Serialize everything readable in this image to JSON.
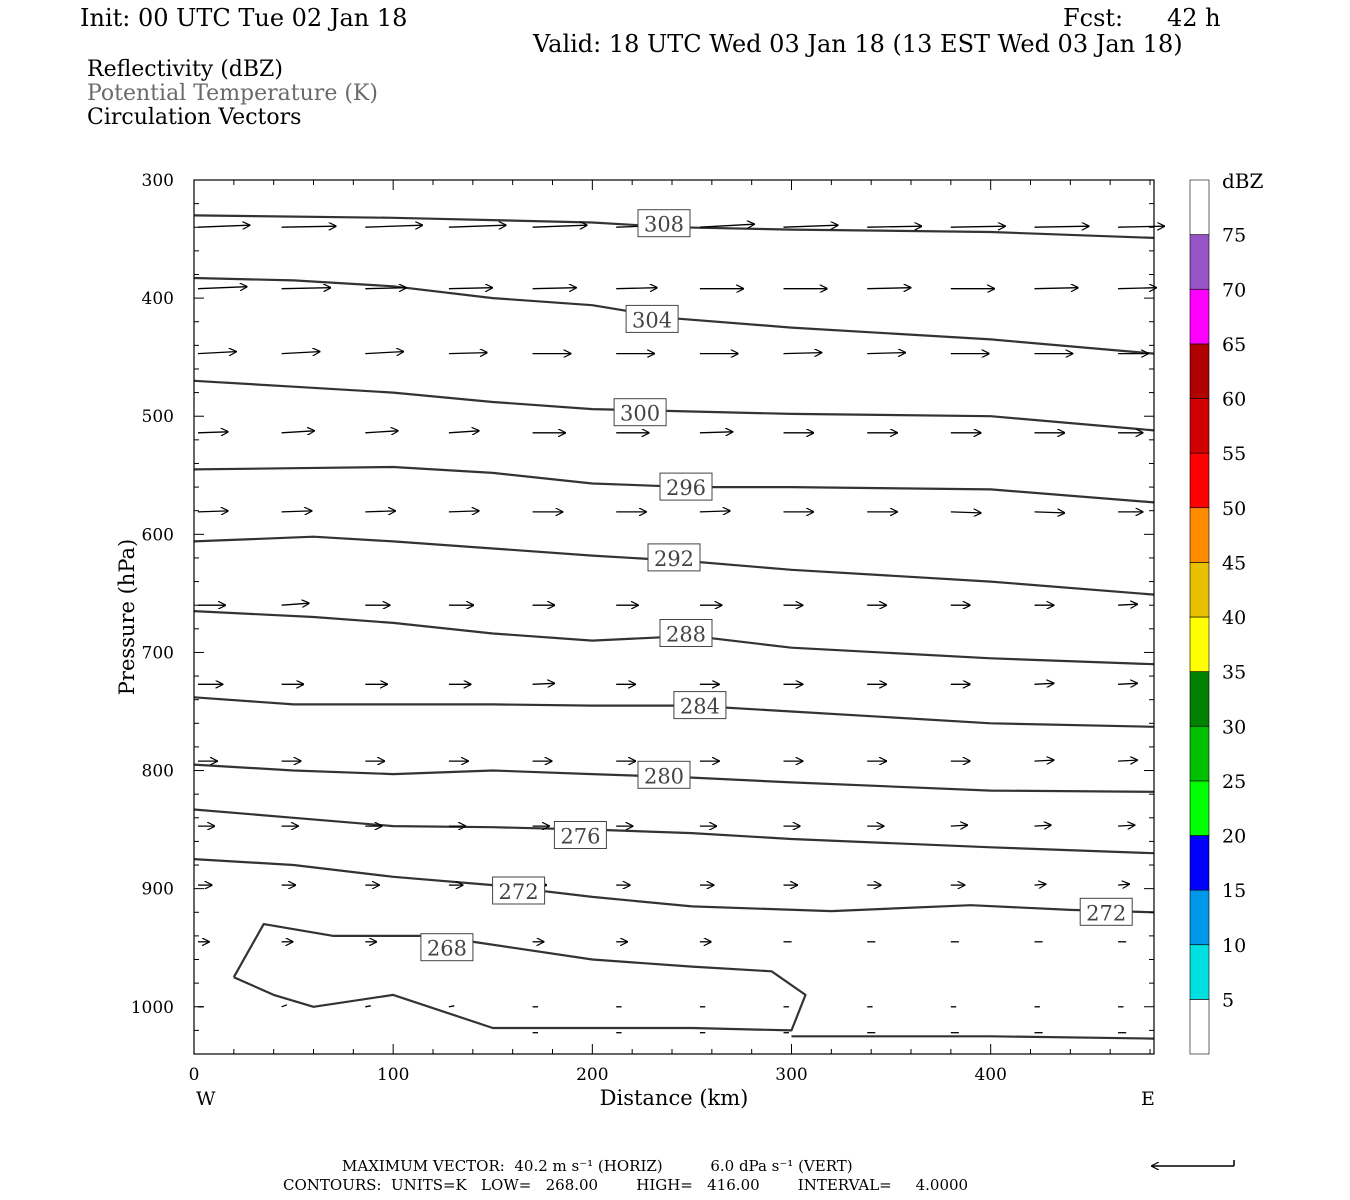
{
  "header": {
    "init": "Init: 00 UTC Tue 02 Jan 18",
    "fcst_label": "Fcst:",
    "fcst_value": "42 h",
    "valid": "Valid: 18 UTC Wed 03 Jan 18 (13 EST Wed 03 Jan 18)"
  },
  "fields": {
    "line1": "Reflectivity (dBZ)",
    "line2": "Potential Temperature (K)",
    "line3": "Circulation Vectors"
  },
  "footer": {
    "max_vector": "MAXIMUM VECTOR:  40.2 m s⁻¹ (HORIZ)          6.0 dPa s⁻¹ (VERT)",
    "contours": "CONTOURS:  UNITS=K   LOW=   268.00        HIGH=   416.00        INTERVAL=     4.0000"
  },
  "colors": {
    "contour": "#333333",
    "vector": "#000000"
  },
  "chart_data": {
    "type": "line",
    "xlabel": "Distance (km)",
    "ylabel": "Pressure (hPa)",
    "xlim": [
      0,
      482
    ],
    "ylim": [
      1040,
      300
    ],
    "x_ticks": [
      0,
      100,
      200,
      300,
      400
    ],
    "y_ticks": [
      300,
      400,
      500,
      600,
      700,
      800,
      900,
      1000
    ],
    "x_end_labels": {
      "left": "W",
      "right": "E"
    },
    "series": [
      {
        "name": "308",
        "x": [
          0,
          100,
          200,
          240,
          300,
          400,
          482
        ],
        "y": [
          330,
          332,
          336,
          340,
          342,
          344,
          349
        ]
      },
      {
        "name": "304",
        "x": [
          0,
          50,
          100,
          150,
          200,
          240,
          300,
          400,
          482
        ],
        "y": [
          383,
          385,
          390,
          400,
          406,
          417,
          425,
          435,
          447
        ]
      },
      {
        "name": "300",
        "x": [
          0,
          50,
          100,
          150,
          200,
          250,
          300,
          400,
          482
        ],
        "y": [
          470,
          475,
          480,
          488,
          494,
          496,
          498,
          500,
          512
        ]
      },
      {
        "name": "296",
        "x": [
          0,
          50,
          100,
          150,
          200,
          250,
          300,
          400,
          482
        ],
        "y": [
          545,
          544,
          543,
          548,
          557,
          560,
          560,
          562,
          573
        ]
      },
      {
        "name": "292",
        "x": [
          0,
          60,
          100,
          150,
          200,
          250,
          300,
          400,
          482
        ],
        "y": [
          606,
          602,
          606,
          612,
          618,
          623,
          630,
          640,
          651
        ]
      },
      {
        "name": "288",
        "x": [
          0,
          60,
          100,
          150,
          200,
          250,
          300,
          400,
          482
        ],
        "y": [
          665,
          670,
          675,
          684,
          690,
          686,
          696,
          705,
          710
        ]
      },
      {
        "name": "284",
        "x": [
          0,
          50,
          100,
          150,
          200,
          250,
          300,
          400,
          482
        ],
        "y": [
          738,
          744,
          744,
          744,
          745,
          745,
          750,
          760,
          763
        ]
      },
      {
        "name": "280",
        "x": [
          0,
          50,
          100,
          150,
          200,
          250,
          300,
          400,
          482
        ],
        "y": [
          795,
          800,
          803,
          800,
          803,
          806,
          810,
          817,
          818
        ]
      },
      {
        "name": "276",
        "x": [
          0,
          50,
          100,
          150,
          200,
          250,
          300,
          400,
          482
        ],
        "y": [
          833,
          840,
          847,
          848,
          850,
          853,
          858,
          865,
          870
        ]
      },
      {
        "name": "272",
        "x": [
          0,
          50,
          100,
          150,
          200,
          250,
          320,
          390,
          440,
          482
        ],
        "y": [
          875,
          880,
          890,
          897,
          907,
          915,
          919,
          914,
          918,
          920
        ]
      },
      {
        "name": "268",
        "x": [
          20,
          35,
          70,
          120,
          160,
          200,
          250,
          290,
          307,
          300,
          250,
          150,
          100,
          60,
          40,
          20
        ],
        "y": [
          975,
          930,
          940,
          940,
          950,
          960,
          966,
          970,
          990,
          1020,
          1018,
          1018,
          990,
          1000,
          990,
          975
        ]
      },
      {
        "name": "",
        "x": [
          300,
          350,
          400,
          482
        ],
        "y": [
          1025,
          1025,
          1025,
          1027
        ]
      }
    ],
    "contour_labels": [
      {
        "text": "308",
        "x": 236,
        "y": 337
      },
      {
        "text": "304",
        "x": 230,
        "y": 418
      },
      {
        "text": "300",
        "x": 224,
        "y": 497
      },
      {
        "text": "296",
        "x": 247,
        "y": 560
      },
      {
        "text": "292",
        "x": 241,
        "y": 620
      },
      {
        "text": "288",
        "x": 247,
        "y": 684
      },
      {
        "text": "284",
        "x": 254,
        "y": 745
      },
      {
        "text": "280",
        "x": 236,
        "y": 804
      },
      {
        "text": "276",
        "x": 194,
        "y": 855
      },
      {
        "text": "272",
        "x": 163,
        "y": 902
      },
      {
        "text": "272",
        "x": 458,
        "y": 920
      },
      {
        "text": "268",
        "x": 127,
        "y": 950
      }
    ],
    "vector_columns": [
      2,
      44,
      86,
      128,
      170,
      212,
      254,
      296,
      338,
      380,
      422,
      464
    ],
    "vector_rows": [
      {
        "p": 340,
        "u": [
          38,
          40,
          42,
          42,
          40,
          40,
          40,
          40,
          40,
          40,
          40,
          34
        ],
        "v": [
          -2,
          -1,
          -2,
          -2,
          -2,
          -2,
          -3,
          -2,
          -1,
          -1,
          -1,
          -1
        ]
      },
      {
        "p": 392,
        "u": [
          36,
          36,
          30,
          32,
          32,
          30,
          32,
          32,
          32,
          32,
          32,
          28
        ],
        "v": [
          -2,
          -1,
          -1,
          -1,
          -1,
          -1,
          0,
          0,
          -1,
          0,
          -1,
          -1
        ]
      },
      {
        "p": 447,
        "u": [
          28,
          28,
          28,
          28,
          28,
          28,
          28,
          28,
          28,
          28,
          28,
          22
        ],
        "v": [
          -2,
          -2,
          -2,
          -1,
          0,
          0,
          0,
          -1,
          -1,
          0,
          0,
          0
        ]
      },
      {
        "p": 514,
        "u": [
          22,
          24,
          24,
          22,
          24,
          24,
          24,
          22,
          22,
          22,
          22,
          18
        ],
        "v": [
          -1,
          -2,
          -2,
          -2,
          0,
          0,
          -1,
          0,
          0,
          0,
          0,
          0
        ]
      },
      {
        "p": 581,
        "u": [
          22,
          22,
          22,
          22,
          22,
          22,
          22,
          22,
          22,
          22,
          22,
          18
        ],
        "v": [
          -1,
          -1,
          -1,
          -1,
          0,
          0,
          -1,
          0,
          0,
          1,
          1,
          0
        ]
      },
      {
        "p": 660,
        "u": [
          20,
          20,
          18,
          18,
          16,
          16,
          16,
          14,
          14,
          14,
          14,
          14
        ],
        "v": [
          0,
          -2,
          0,
          0,
          0,
          0,
          0,
          0,
          0,
          0,
          0,
          -1
        ]
      },
      {
        "p": 727,
        "u": [
          18,
          16,
          16,
          16,
          16,
          14,
          14,
          14,
          14,
          14,
          14,
          14
        ],
        "v": [
          0,
          0,
          0,
          0,
          -1,
          0,
          0,
          0,
          0,
          0,
          -1,
          -1
        ]
      },
      {
        "p": 792,
        "u": [
          14,
          14,
          14,
          14,
          14,
          14,
          14,
          14,
          14,
          14,
          14,
          14
        ],
        "v": [
          0,
          0,
          0,
          0,
          0,
          0,
          0,
          0,
          0,
          0,
          -1,
          -1
        ]
      },
      {
        "p": 847,
        "u": [
          12,
          12,
          12,
          12,
          12,
          12,
          12,
          12,
          12,
          12,
          12,
          12
        ],
        "v": [
          0,
          0,
          0,
          0,
          0,
          0,
          0,
          0,
          0,
          -1,
          -1,
          -1
        ]
      },
      {
        "p": 897,
        "u": [
          10,
          10,
          10,
          10,
          10,
          10,
          10,
          10,
          10,
          10,
          8,
          8
        ],
        "v": [
          0,
          0,
          0,
          0,
          0,
          0,
          0,
          0,
          0,
          0,
          -1,
          -1
        ]
      },
      {
        "p": 945,
        "u": [
          8,
          8,
          8,
          8,
          8,
          8,
          8,
          6,
          6,
          6,
          6,
          6
        ],
        "v": [
          0,
          0,
          0,
          0,
          0,
          0,
          0,
          0,
          0,
          0,
          0,
          0
        ]
      },
      {
        "p": 1000,
        "u": [
          4,
          4,
          4,
          4,
          4,
          4,
          4,
          4,
          4,
          4,
          4,
          4
        ],
        "v": [
          0,
          -2,
          -1,
          -1,
          0,
          0,
          0,
          0,
          0,
          0,
          0,
          0
        ]
      },
      {
        "p": 1022,
        "u": [
          0,
          0,
          0,
          0,
          4,
          4,
          4,
          4,
          6,
          6,
          6,
          6
        ],
        "v": [
          0,
          0,
          0,
          0,
          0,
          0,
          0,
          0,
          0,
          0,
          0,
          0
        ]
      }
    ],
    "colorbar": {
      "title": "dBZ",
      "levels": [
        5,
        10,
        15,
        20,
        25,
        30,
        35,
        40,
        45,
        50,
        55,
        60,
        65,
        70,
        75
      ],
      "colors": [
        "#ffffff",
        "#00e0e0",
        "#0098e8",
        "#0000ff",
        "#00ff00",
        "#00c000",
        "#008000",
        "#ffff00",
        "#e8c000",
        "#ff8c00",
        "#ff0000",
        "#d00000",
        "#b00000",
        "#ff00ff",
        "#9855c8",
        "#ffffff"
      ]
    }
  }
}
